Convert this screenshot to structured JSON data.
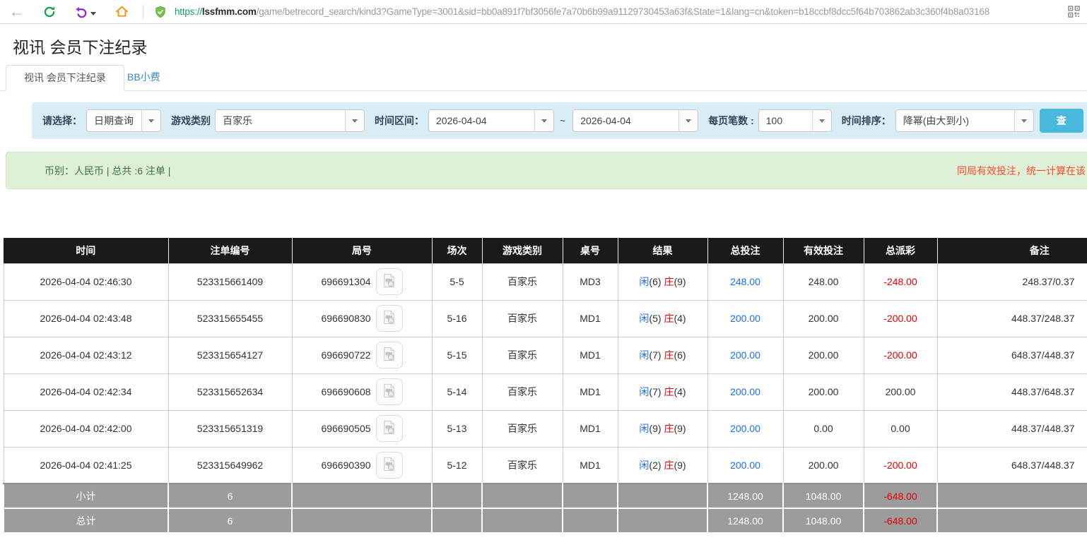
{
  "browser": {
    "url_scheme": "https://",
    "url_domain": "lssfmm.com",
    "url_path": "/game/betrecord_search/kind3?GameType=3001&sid=bb0a891f7bf3056fe7a70b6b99a91129730453a63f&State=1&lang=cn&token=b18ccbf8dcc5f64b703862ab3c360f4b8a03168"
  },
  "icons": {
    "nav": [
      "back-icon",
      "refresh-icon",
      "undo-icon",
      "home-icon",
      "shield-icon",
      "qr-code-icon"
    ],
    "row_icon": "video-replay-icon"
  },
  "page": {
    "title": "视讯 会员下注纪录",
    "tabs": [
      {
        "label": "视讯 会员下注纪录",
        "active": true
      },
      {
        "label": "BB小费",
        "active": false
      }
    ]
  },
  "filters": {
    "select_label": "请选择：",
    "select_value": "日期查询",
    "game_type_label": "游戏类别",
    "game_type_value": "百家乐",
    "time_range_label": "时间区间：",
    "time_from": "2026-04-04",
    "tilde": "~",
    "time_to": "2026-04-04",
    "page_size_label": "每页笔数 :",
    "page_size_value": "100",
    "sort_label": "时间排序：",
    "sort_value": "降幂(由大到小)",
    "search_button": "查"
  },
  "summary": {
    "left": "币别：人民币 | 总共 :6 注单 |",
    "right_note": "同局有效投注，统一计算在该"
  },
  "table": {
    "headers": [
      "时间",
      "注单编号",
      "局号",
      "场次",
      "游戏类别",
      "桌号",
      "结果",
      "总投注",
      "有效投注",
      "总派彩",
      "备注"
    ],
    "rows": [
      {
        "time": "2026-04-04 02:46:30",
        "bet_id": "523315661409",
        "round_id": "696691304",
        "session": "5-5",
        "game": "百家乐",
        "table_no": "MD3",
        "result": {
          "player": "闲",
          "player_score": "(6)",
          "banker": "庄",
          "banker_score": "(9)"
        },
        "total_bet": "248.00",
        "valid_bet": "248.00",
        "payout": "-248.00",
        "remark": "248.37/0.37"
      },
      {
        "time": "2026-04-04 02:43:48",
        "bet_id": "523315655455",
        "round_id": "696690830",
        "session": "5-16",
        "game": "百家乐",
        "table_no": "MD1",
        "result": {
          "player": "闲",
          "player_score": "(5)",
          "banker": "庄",
          "banker_score": "(4)"
        },
        "total_bet": "200.00",
        "valid_bet": "200.00",
        "payout": "-200.00",
        "remark": "448.37/248.37"
      },
      {
        "time": "2026-04-04 02:43:12",
        "bet_id": "523315654127",
        "round_id": "696690722",
        "session": "5-15",
        "game": "百家乐",
        "table_no": "MD1",
        "result": {
          "player": "闲",
          "player_score": "(7)",
          "banker": "庄",
          "banker_score": "(6)"
        },
        "total_bet": "200.00",
        "valid_bet": "200.00",
        "payout": "-200.00",
        "remark": "648.37/448.37"
      },
      {
        "time": "2026-04-04 02:42:34",
        "bet_id": "523315652634",
        "round_id": "696690608",
        "session": "5-14",
        "game": "百家乐",
        "table_no": "MD1",
        "result": {
          "player": "闲",
          "player_score": "(7)",
          "banker": "庄",
          "banker_score": "(4)"
        },
        "total_bet": "200.00",
        "valid_bet": "200.00",
        "payout": "200.00",
        "remark": "448.37/648.37"
      },
      {
        "time": "2026-04-04 02:42:00",
        "bet_id": "523315651319",
        "round_id": "696690505",
        "session": "5-13",
        "game": "百家乐",
        "table_no": "MD1",
        "result": {
          "player": "闲",
          "player_score": "(9)",
          "banker": "庄",
          "banker_score": "(9)"
        },
        "total_bet": "200.00",
        "valid_bet": "0.00",
        "payout": "0.00",
        "remark": "448.37/448.37"
      },
      {
        "time": "2026-04-04 02:41:25",
        "bet_id": "523315649962",
        "round_id": "696690390",
        "session": "5-12",
        "game": "百家乐",
        "table_no": "MD1",
        "result": {
          "player": "闲",
          "player_score": "(2)",
          "banker": "庄",
          "banker_score": "(9)"
        },
        "total_bet": "200.00",
        "valid_bet": "200.00",
        "payout": "-200.00",
        "remark": "648.37/448.37"
      }
    ],
    "subtotal": {
      "label": "小计",
      "count": "6",
      "total_bet": "1248.00",
      "valid_bet": "1048.00",
      "payout": "-648.00"
    },
    "total": {
      "label": "总计",
      "count": "6",
      "total_bet": "1248.00",
      "valid_bet": "1048.00",
      "payout": "-648.00"
    }
  },
  "colors": {
    "accent_blue": "#1a6ff0",
    "loss_red": "#e60000",
    "header_bg": "#1a1a1a",
    "footer_bg": "#9c9c9c",
    "filter_bg": "#d9edf7",
    "alert_bg": "#dff0d8",
    "alert_text": "#3c763d",
    "note_red": "#fa4a2a",
    "search_button_bg": "#48b9dc",
    "url_secure_green": "#15a15a"
  }
}
